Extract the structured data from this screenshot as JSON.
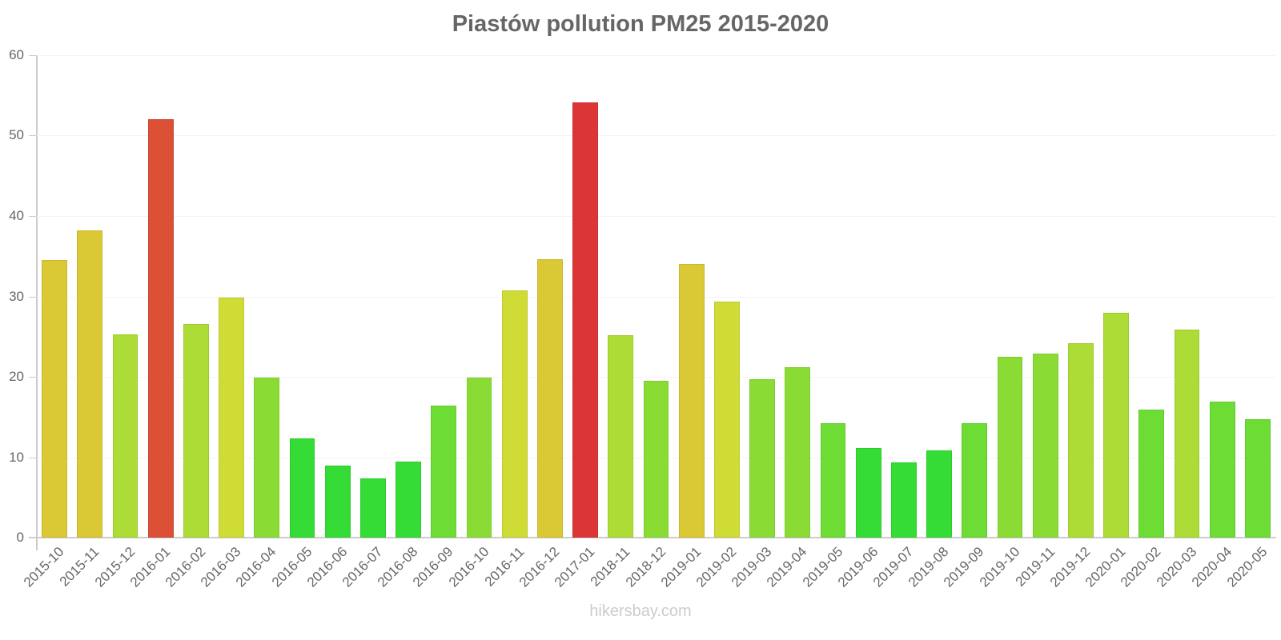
{
  "title": "Piastów pollution PM25 2015-2020",
  "watermark": "hikersbay.com",
  "colors": {
    "red": "#dc3535",
    "orange_red": "#dc5035",
    "yellow": "#dac835",
    "yellow_green": "#cfdc35",
    "lime": "#acdc35",
    "light_green": "#8adc35",
    "green": "#6ddc35",
    "bright_green": "#35dc35"
  },
  "chart_data": {
    "type": "bar",
    "title": "Piastów pollution PM25 2015-2020",
    "xlabel": "",
    "ylabel": "",
    "ylim": [
      0,
      60
    ],
    "yticks": [
      0,
      10,
      20,
      30,
      40,
      50,
      60
    ],
    "grid": true,
    "legend": null,
    "categories": [
      "2015-10",
      "2015-11",
      "2015-12",
      "2016-01",
      "2016-02",
      "2016-03",
      "2016-04",
      "2016-05",
      "2016-06",
      "2016-07",
      "2016-08",
      "2016-09",
      "2016-10",
      "2016-11",
      "2016-12",
      "2017-01",
      "2018-11",
      "2018-12",
      "2019-01",
      "2019-02",
      "2019-03",
      "2019-04",
      "2019-05",
      "2019-06",
      "2019-07",
      "2019-08",
      "2019-09",
      "2019-10",
      "2019-11",
      "2019-12",
      "2020-01",
      "2020-02",
      "2020-03",
      "2020-04",
      "2020-05"
    ],
    "values": [
      34.5,
      38.2,
      25.3,
      52.0,
      26.6,
      29.9,
      19.9,
      12.3,
      9.0,
      7.4,
      9.5,
      16.4,
      19.9,
      30.7,
      34.6,
      54.1,
      25.2,
      19.5,
      34.0,
      29.4,
      19.7,
      21.2,
      14.2,
      11.1,
      9.4,
      10.8,
      14.2,
      22.5,
      22.9,
      24.2,
      28.0,
      15.9,
      25.9,
      16.9,
      14.7
    ],
    "bar_colors": [
      "#dac835",
      "#dac835",
      "#acdc35",
      "#dc5035",
      "#acdc35",
      "#cfdc35",
      "#8adc35",
      "#35dc35",
      "#35dc35",
      "#35dc35",
      "#35dc35",
      "#6ddc35",
      "#8adc35",
      "#cfdc35",
      "#dac835",
      "#dc3535",
      "#acdc35",
      "#8adc35",
      "#dac835",
      "#cfdc35",
      "#8adc35",
      "#8adc35",
      "#6ddc35",
      "#35dc35",
      "#35dc35",
      "#35dc35",
      "#6ddc35",
      "#8adc35",
      "#8adc35",
      "#acdc35",
      "#acdc35",
      "#6ddc35",
      "#acdc35",
      "#6ddc35",
      "#6ddc35"
    ]
  }
}
